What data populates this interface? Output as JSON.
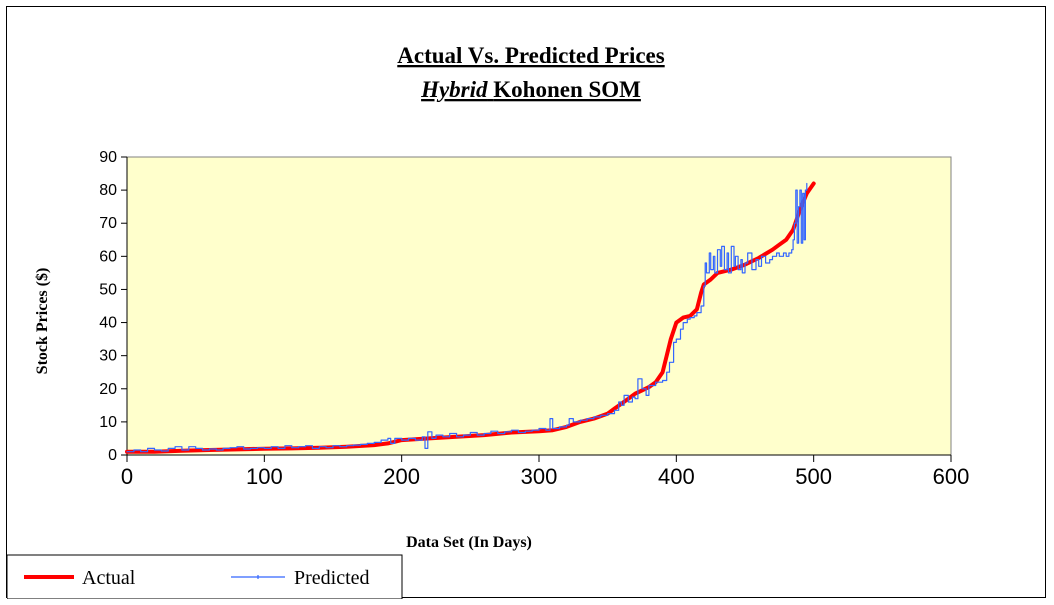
{
  "chart_data": {
    "type": "line",
    "title_line1": "Actual Vs. Predicted Prices",
    "title_line2_italic": "Hybrid",
    "title_line2_rest": "Kohonen SOM",
    "xlabel": "Data Set (In Days)",
    "ylabel": "Stock Prices ($)",
    "xlim": [
      0,
      600
    ],
    "ylim": [
      0,
      90
    ],
    "xticks": [
      "0",
      "100",
      "200",
      "300",
      "400",
      "500",
      "600"
    ],
    "yticks": [
      "0",
      "10",
      "20",
      "30",
      "40",
      "50",
      "60",
      "70",
      "80",
      "90"
    ],
    "legend_position": "bottom-left",
    "plot_background": "#ffffcc",
    "series": [
      {
        "name": "Actual",
        "color": "#ff0000",
        "x": [
          0,
          20,
          40,
          60,
          80,
          100,
          120,
          140,
          160,
          180,
          190,
          200,
          220,
          240,
          260,
          280,
          300,
          310,
          320,
          330,
          340,
          350,
          355,
          360,
          365,
          370,
          375,
          380,
          385,
          390,
          393,
          396,
          400,
          405,
          410,
          415,
          418,
          420,
          425,
          430,
          440,
          450,
          460,
          470,
          475,
          480,
          485,
          490,
          495,
          500
        ],
        "values": [
          1,
          1,
          1.3,
          1.5,
          1.7,
          1.9,
          2,
          2.2,
          2.5,
          3,
          3.5,
          4.5,
          5,
          5.5,
          6,
          6.8,
          7.2,
          7.5,
          8.5,
          10,
          11,
          12.5,
          14,
          15.5,
          17,
          18.5,
          19.5,
          20.5,
          22,
          25,
          30,
          35,
          40,
          41.5,
          42,
          44,
          49,
          51.5,
          53,
          55,
          56,
          57.5,
          59.5,
          62,
          63.5,
          65,
          68,
          74,
          79,
          82
        ]
      },
      {
        "name": "Predicted",
        "color": "#3366ff",
        "x": [
          0,
          5,
          10,
          15,
          20,
          25,
          30,
          35,
          40,
          45,
          50,
          55,
          60,
          65,
          70,
          75,
          80,
          85,
          90,
          95,
          100,
          105,
          110,
          115,
          120,
          125,
          130,
          135,
          140,
          145,
          150,
          155,
          160,
          165,
          170,
          175,
          180,
          185,
          190,
          192,
          195,
          200,
          205,
          210,
          215,
          217,
          219,
          222,
          225,
          230,
          235,
          240,
          245,
          250,
          255,
          260,
          265,
          270,
          275,
          280,
          285,
          290,
          295,
          300,
          305,
          308,
          310,
          315,
          320,
          322,
          325,
          330,
          335,
          340,
          345,
          350,
          355,
          358,
          360,
          362,
          365,
          368,
          370,
          372,
          375,
          378,
          380,
          385,
          390,
          393,
          395,
          398,
          400,
          403,
          405,
          408,
          410,
          413,
          415,
          418,
          420,
          421,
          422,
          424,
          425,
          427,
          428,
          430,
          432,
          433,
          435,
          437,
          438,
          440,
          442,
          443,
          445,
          447,
          448,
          450,
          452,
          455,
          458,
          460,
          462,
          465,
          468,
          470,
          473,
          475,
          478,
          480,
          482,
          484,
          485,
          486,
          487,
          488,
          489,
          490,
          491,
          492,
          493,
          494,
          495
        ],
        "values": [
          1,
          1.5,
          1,
          2,
          1.5,
          1.2,
          2,
          2.5,
          1.5,
          2.5,
          2,
          1.5,
          1.8,
          1.5,
          2,
          2.2,
          2.5,
          1.8,
          2,
          2.2,
          2,
          2.5,
          2,
          2.8,
          2.2,
          2.5,
          2.8,
          2,
          2.5,
          2.2,
          2.8,
          2.5,
          2.8,
          3,
          3.2,
          3.5,
          3.8,
          4.5,
          5,
          3.5,
          5,
          4.5,
          5,
          4.5,
          5.5,
          2,
          7,
          5,
          6,
          5.5,
          6.5,
          5.5,
          6,
          6.8,
          6,
          6.5,
          7.2,
          6.5,
          7,
          7.5,
          6.8,
          7.2,
          7.5,
          8,
          7.5,
          11,
          8,
          8.5,
          9,
          11,
          10,
          10.5,
          11,
          11.5,
          12,
          12.5,
          13.5,
          16,
          15,
          18,
          16,
          17.5,
          17,
          23,
          20,
          18,
          21,
          22,
          22.5,
          25,
          28,
          34,
          35,
          38,
          40,
          41,
          41.5,
          42,
          43,
          45,
          51,
          58,
          55,
          61,
          56,
          60,
          55,
          62,
          57,
          63,
          56,
          61,
          55,
          63,
          57,
          60,
          56,
          59,
          55,
          58,
          61,
          56,
          59,
          57,
          60,
          58,
          59,
          60,
          61,
          60,
          61,
          60,
          61,
          62,
          65,
          70,
          80,
          64,
          75,
          80,
          64,
          79,
          65,
          80,
          82
        ]
      }
    ]
  }
}
